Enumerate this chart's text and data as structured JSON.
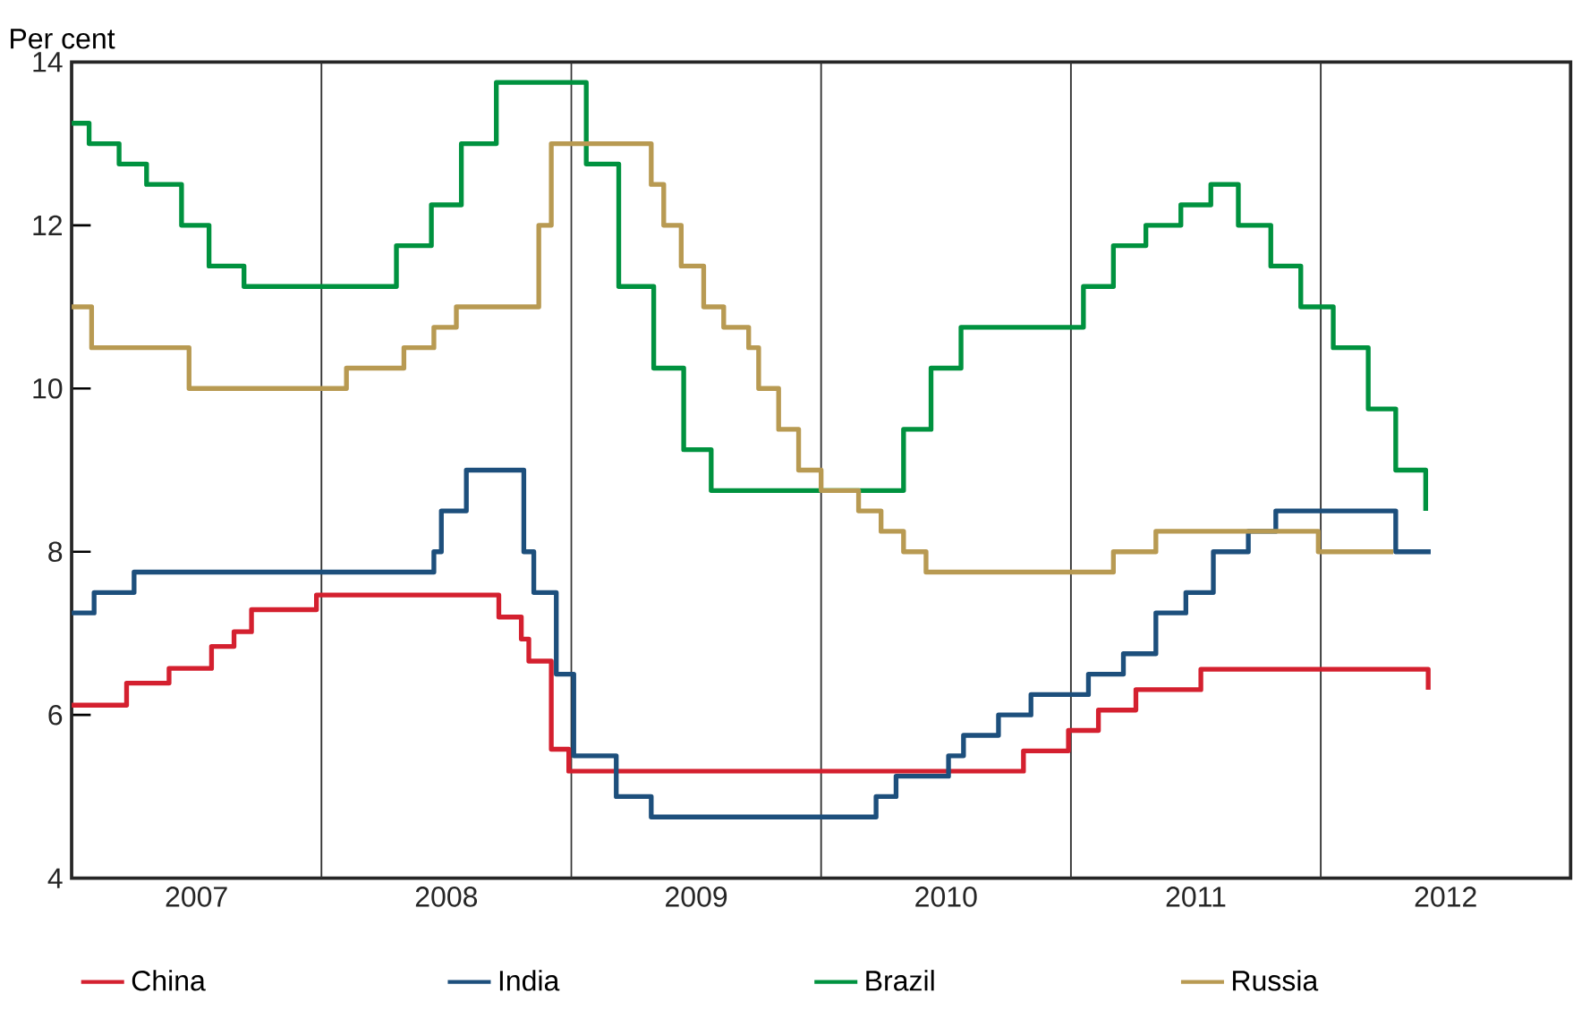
{
  "chart_data": {
    "type": "step",
    "ylabel": "Per cent",
    "xlim": [
      2007,
      2013
    ],
    "ylim": [
      4,
      14
    ],
    "xticks": [
      {
        "value": 2007.5,
        "label": "2007"
      },
      {
        "value": 2008.5,
        "label": "2008"
      },
      {
        "value": 2009.5,
        "label": "2009"
      },
      {
        "value": 2010.5,
        "label": "2010"
      },
      {
        "value": 2011.5,
        "label": "2011"
      },
      {
        "value": 2012.5,
        "label": "2012"
      }
    ],
    "yticks": [
      4,
      6,
      8,
      10,
      12,
      14
    ],
    "ref_lines": [
      {
        "axis": "x",
        "value": 2008,
        "color": "#333333"
      },
      {
        "axis": "x",
        "value": 2009,
        "color": "#333333"
      },
      {
        "axis": "x",
        "value": 2010,
        "color": "#333333"
      },
      {
        "axis": "x",
        "value": 2011,
        "color": "#333333"
      },
      {
        "axis": "x",
        "value": 2012,
        "color": "#333333"
      }
    ],
    "legend": "bottom",
    "marker": "none",
    "line_style": "solid",
    "series": [
      {
        "name": "China",
        "color": "#d4202f",
        "x": [
          2007.0,
          2007.22,
          2007.39,
          2007.56,
          2007.65,
          2007.72,
          2007.98,
          2008.71,
          2008.8,
          2008.83,
          2008.92,
          2008.99,
          2010.81,
          2010.99,
          2011.11,
          2011.26,
          2011.52,
          2012.43
        ],
        "values": [
          6.12,
          6.39,
          6.57,
          6.84,
          7.02,
          7.29,
          7.47,
          7.2,
          6.93,
          6.66,
          5.58,
          5.31,
          5.56,
          5.81,
          6.06,
          6.31,
          6.56,
          6.31
        ]
      },
      {
        "name": "India",
        "color": "#1d4f7c",
        "x": [
          2007.0,
          2007.09,
          2007.25,
          2008.45,
          2008.48,
          2008.58,
          2008.81,
          2008.85,
          2008.94,
          2009.01,
          2009.18,
          2009.32,
          2010.22,
          2010.3,
          2010.51,
          2010.57,
          2010.71,
          2010.84,
          2011.07,
          2011.21,
          2011.34,
          2011.46,
          2011.57,
          2011.71,
          2011.82,
          2012.3,
          2012.44
        ],
        "values": [
          7.25,
          7.5,
          7.75,
          8.0,
          8.5,
          9.0,
          8.0,
          7.5,
          6.5,
          5.5,
          5.0,
          4.75,
          5.0,
          5.25,
          5.5,
          5.75,
          6.0,
          6.25,
          6.5,
          6.75,
          7.25,
          7.5,
          8.0,
          8.25,
          8.5,
          8.0,
          8.0
        ]
      },
      {
        "name": "Brazil",
        "color": "#00923f",
        "x": [
          2007.0,
          2007.07,
          2007.19,
          2007.3,
          2007.44,
          2007.55,
          2007.69,
          2008.3,
          2008.44,
          2008.56,
          2008.7,
          2009.06,
          2009.19,
          2009.33,
          2009.45,
          2009.56,
          2010.33,
          2010.44,
          2010.56,
          2011.05,
          2011.17,
          2011.3,
          2011.44,
          2011.56,
          2011.67,
          2011.8,
          2011.92,
          2012.05,
          2012.19,
          2012.3,
          2012.42
        ],
        "values": [
          13.25,
          13.0,
          12.75,
          12.5,
          12.0,
          11.5,
          11.25,
          11.75,
          12.25,
          13.0,
          13.75,
          12.75,
          11.25,
          10.25,
          9.25,
          8.75,
          9.5,
          10.25,
          10.75,
          11.25,
          11.75,
          12.0,
          12.25,
          12.5,
          12.0,
          11.5,
          11.0,
          10.5,
          9.75,
          9.0,
          8.5
        ]
      },
      {
        "name": "Russia",
        "color": "#b89a52",
        "x": [
          2007.0,
          2007.08,
          2007.47,
          2008.1,
          2008.33,
          2008.45,
          2008.54,
          2008.87,
          2008.92,
          2009.32,
          2009.37,
          2009.44,
          2009.53,
          2009.61,
          2009.71,
          2009.75,
          2009.83,
          2009.91,
          2010.0,
          2010.15,
          2010.24,
          2010.33,
          2010.42,
          2011.17,
          2011.34,
          2011.99,
          2012.29
        ],
        "values": [
          11.0,
          10.5,
          10.0,
          10.25,
          10.5,
          10.75,
          11.0,
          12.0,
          13.0,
          12.5,
          12.0,
          11.5,
          11.0,
          10.75,
          10.5,
          10.0,
          9.5,
          9.0,
          8.75,
          8.5,
          8.25,
          8.0,
          7.75,
          8.0,
          8.25,
          8.0,
          8.0
        ]
      }
    ]
  }
}
